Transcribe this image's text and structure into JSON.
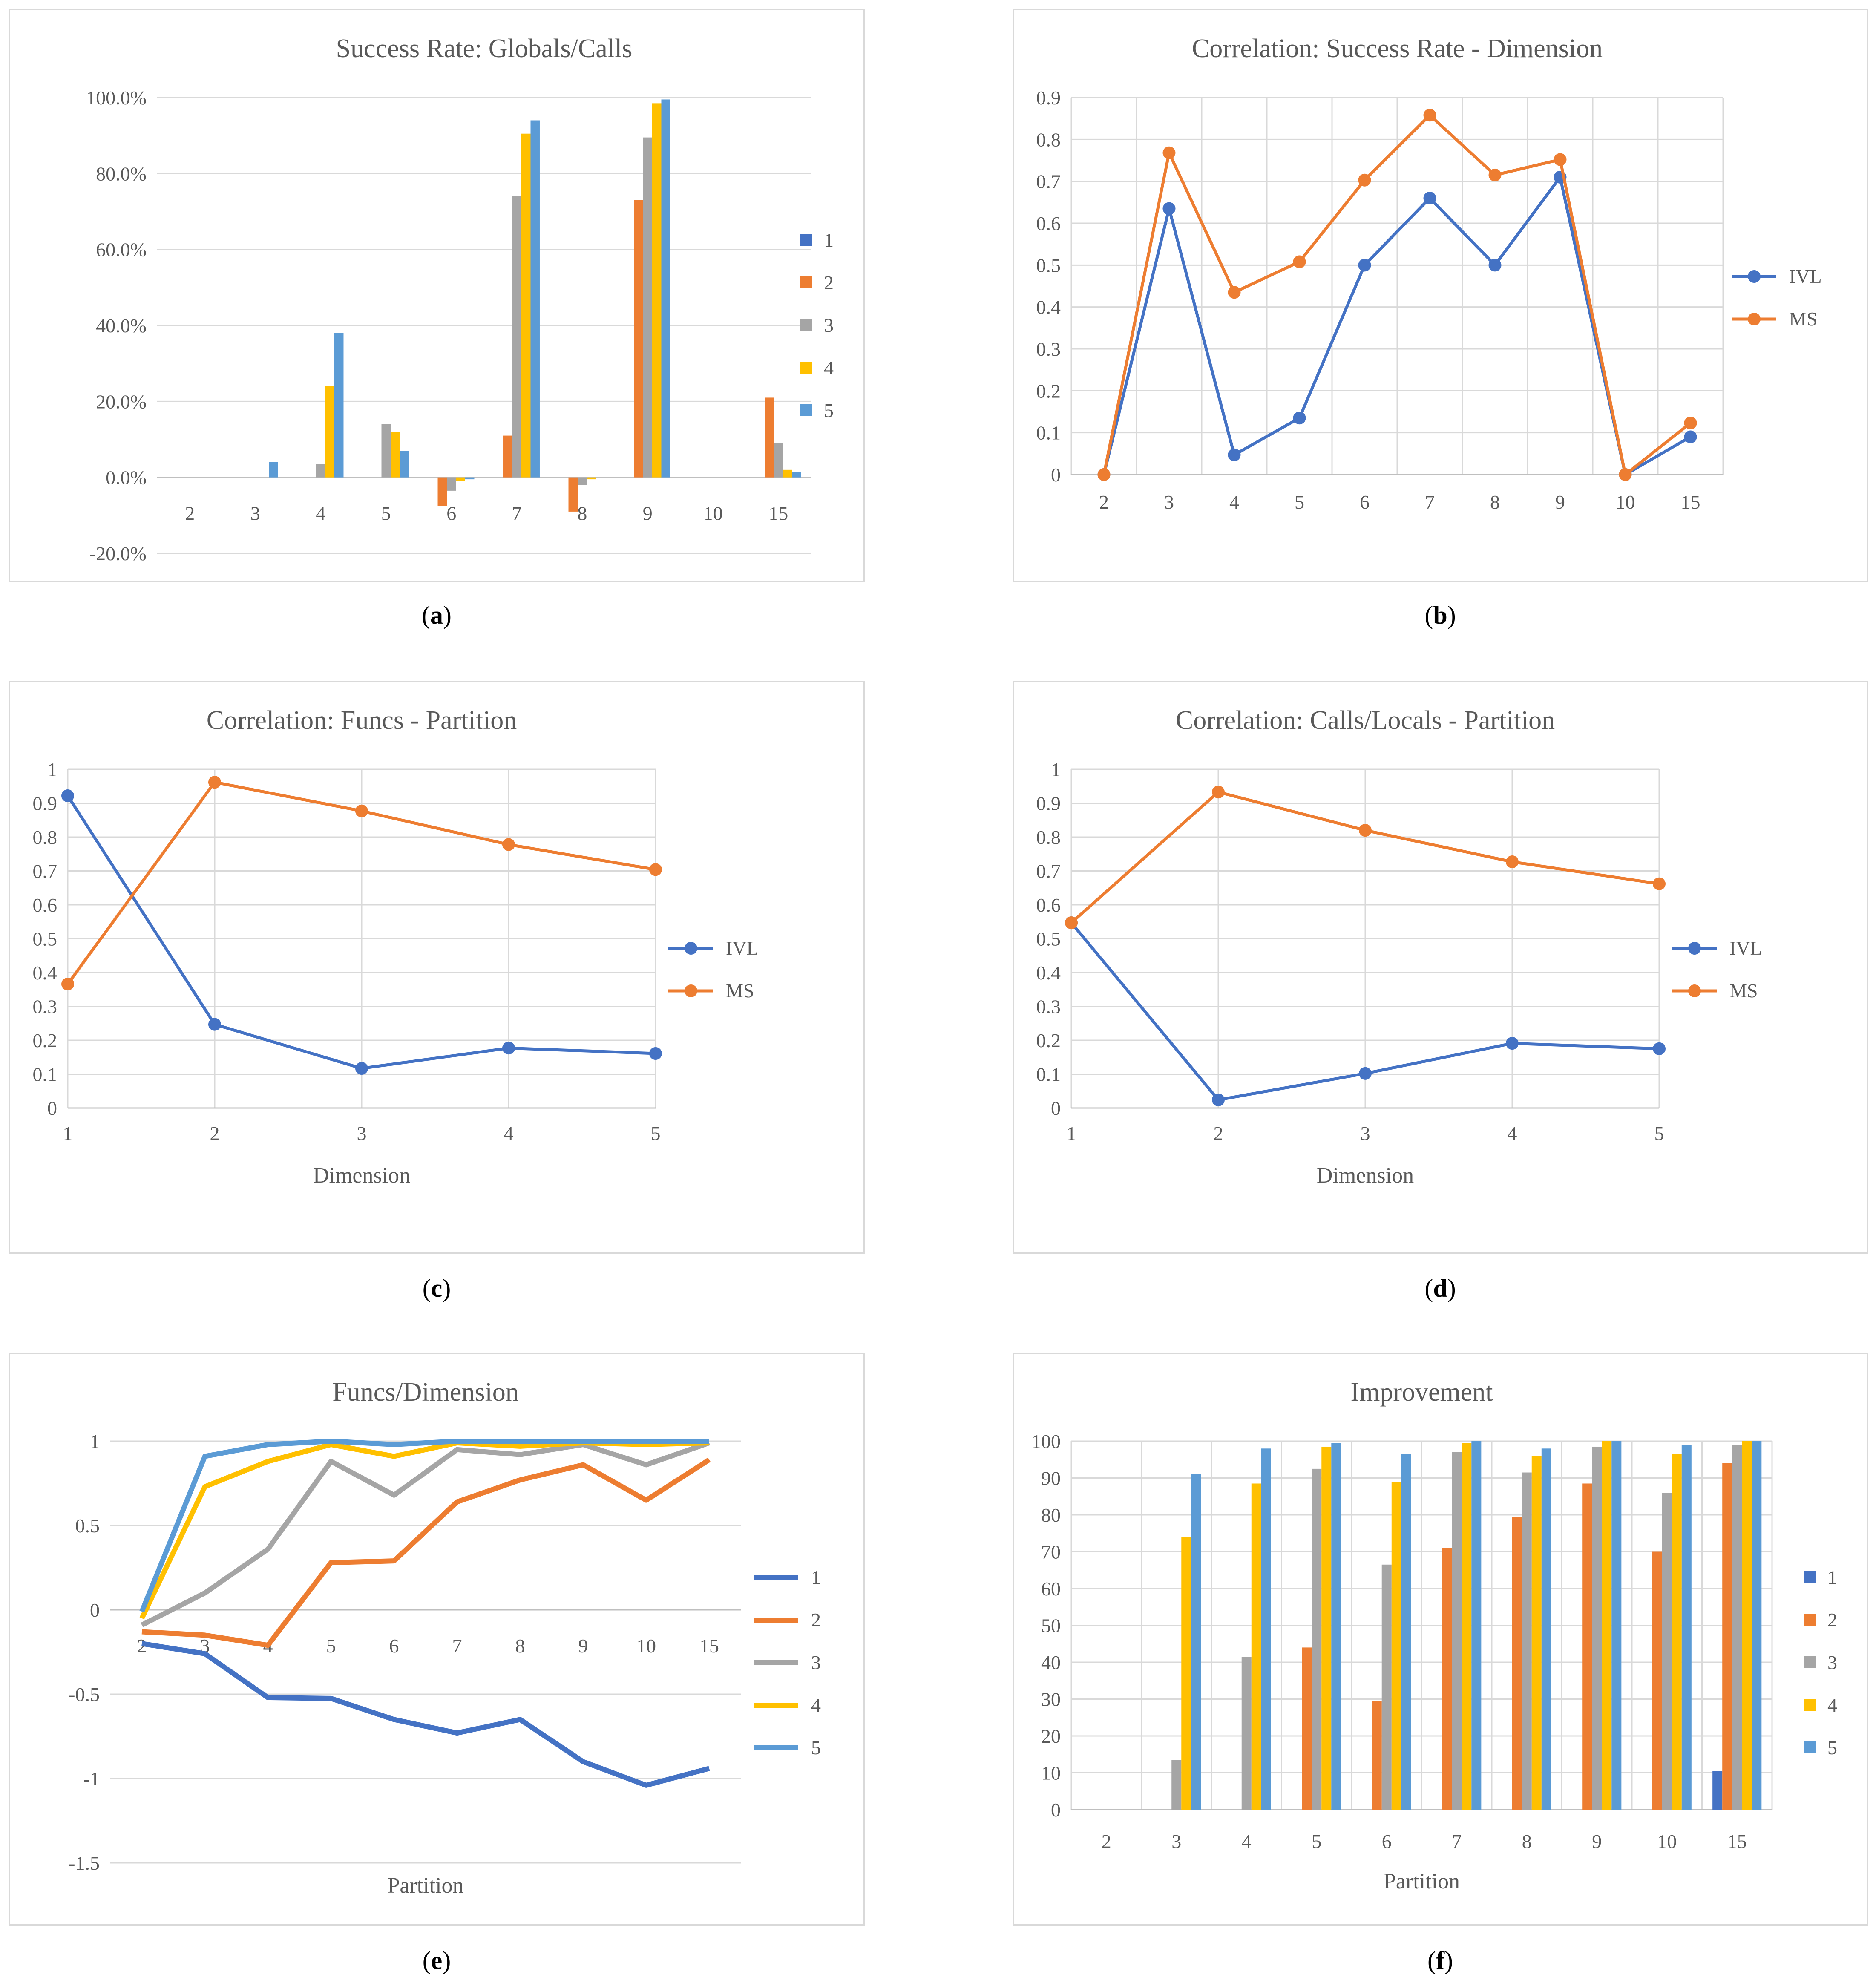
{
  "chart_data": [
    {
      "id": "a",
      "type": "bar",
      "caption": "a",
      "title": "Success Rate: Globals/Calls",
      "categories": [
        "2",
        "3",
        "4",
        "5",
        "6",
        "7",
        "8",
        "9",
        "10",
        "15"
      ],
      "ylim": [
        -20,
        100
      ],
      "yticks": [
        "-20.0%",
        "0.0%",
        "20.0%",
        "40.0%",
        "60.0%",
        "80.0%",
        "100.0%"
      ],
      "ytick_values": [
        -20,
        0,
        20,
        40,
        60,
        80,
        100
      ],
      "grid": true,
      "xlabel": "",
      "ylabel": "",
      "legend": "right",
      "series": [
        {
          "name": "1",
          "color": "#4472c4",
          "values": [
            0,
            0,
            0,
            0,
            0,
            0,
            0,
            0,
            0,
            0
          ]
        },
        {
          "name": "2",
          "color": "#ed7d31",
          "values": [
            0,
            0,
            0,
            0,
            -7.5,
            11,
            -9,
            73,
            0,
            21
          ]
        },
        {
          "name": "3",
          "color": "#a5a5a5",
          "values": [
            0,
            0,
            3.5,
            14,
            -3.5,
            74,
            -2,
            89.5,
            0,
            9
          ]
        },
        {
          "name": "4",
          "color": "#ffc000",
          "values": [
            0,
            0,
            24,
            12,
            -1,
            90.5,
            -0.5,
            98.5,
            0,
            2
          ]
        },
        {
          "name": "5",
          "color": "#5b9bd5",
          "values": [
            0,
            4,
            38,
            7,
            -0.5,
            94,
            0,
            99.5,
            0,
            1.5
          ]
        }
      ]
    },
    {
      "id": "b",
      "type": "line",
      "caption": "b",
      "title": "Correlation: Success Rate - Dimension",
      "categories": [
        "2",
        "3",
        "4",
        "5",
        "6",
        "7",
        "8",
        "9",
        "10",
        "15"
      ],
      "ylim": [
        0,
        0.9
      ],
      "yticks": [
        "0",
        "0.1",
        "0.2",
        "0.3",
        "0.4",
        "0.5",
        "0.6",
        "0.7",
        "0.8",
        "0.9"
      ],
      "ytick_values": [
        0,
        0.1,
        0.2,
        0.3,
        0.4,
        0.5,
        0.6,
        0.7,
        0.8,
        0.9
      ],
      "grid": true,
      "grid_x": true,
      "xlabel": "",
      "legend": "right",
      "series": [
        {
          "name": "IVL",
          "color": "#4472c4",
          "values": [
            0,
            0.635,
            0.047,
            0.135,
            0.5,
            0.66,
            0.5,
            0.71,
            0,
            0.09
          ]
        },
        {
          "name": "MS",
          "color": "#ed7d31",
          "values": [
            0,
            0.768,
            0.435,
            0.508,
            0.703,
            0.858,
            0.715,
            0.752,
            0,
            0.123
          ]
        }
      ]
    },
    {
      "id": "c",
      "type": "line",
      "caption": "c",
      "title": "Correlation: Funcs - Partition",
      "categories": [
        "1",
        "2",
        "3",
        "4",
        "5"
      ],
      "ylim": [
        0,
        1
      ],
      "yticks": [
        "0",
        "0.1",
        "0.2",
        "0.3",
        "0.4",
        "0.5",
        "0.6",
        "0.7",
        "0.8",
        "0.9",
        "1"
      ],
      "ytick_values": [
        0,
        0.1,
        0.2,
        0.3,
        0.4,
        0.5,
        0.6,
        0.7,
        0.8,
        0.9,
        1
      ],
      "grid": true,
      "grid_x": true,
      "xlabel": "Dimension",
      "legend": "right",
      "series": [
        {
          "name": "IVL",
          "color": "#4472c4",
          "values": [
            0.922,
            0.247,
            0.117,
            0.177,
            0.161
          ]
        },
        {
          "name": "MS",
          "color": "#ed7d31",
          "values": [
            0.366,
            0.962,
            0.877,
            0.778,
            0.704
          ]
        }
      ]
    },
    {
      "id": "d",
      "type": "line",
      "caption": "d",
      "title": "Correlation: Calls/Locals - Partition",
      "categories": [
        "1",
        "2",
        "3",
        "4",
        "5"
      ],
      "ylim": [
        0,
        1
      ],
      "yticks": [
        "0",
        "0.1",
        "0.2",
        "0.3",
        "0.4",
        "0.5",
        "0.6",
        "0.7",
        "0.8",
        "0.9",
        "1"
      ],
      "ytick_values": [
        0,
        0.1,
        0.2,
        0.3,
        0.4,
        0.5,
        0.6,
        0.7,
        0.8,
        0.9,
        1
      ],
      "grid": true,
      "grid_x": true,
      "xlabel": "Dimension",
      "legend": "right",
      "series": [
        {
          "name": "IVL",
          "color": "#4472c4",
          "values": [
            0.547,
            0.024,
            0.102,
            0.191,
            0.175
          ]
        },
        {
          "name": "MS",
          "color": "#ed7d31",
          "values": [
            0.547,
            0.933,
            0.82,
            0.727,
            0.662
          ]
        }
      ]
    },
    {
      "id": "e",
      "type": "line",
      "caption": "e",
      "title": "Funcs/Dimension",
      "categories": [
        "2",
        "3",
        "4",
        "5",
        "6",
        "7",
        "8",
        "9",
        "10",
        "15"
      ],
      "ylim": [
        -1.5,
        1
      ],
      "yticks": [
        "-1.5",
        "-1",
        "-0.5",
        "0",
        "0.5",
        "1"
      ],
      "ytick_values": [
        -1.5,
        -1,
        -0.5,
        0,
        0.5,
        1
      ],
      "grid": true,
      "xlabel": "Partition",
      "legend": "right",
      "series": [
        {
          "name": "1",
          "color": "#4472c4",
          "values": [
            -0.2,
            -0.26,
            -0.52,
            -0.525,
            -0.65,
            -0.73,
            -0.65,
            -0.9,
            -1.04,
            -0.94
          ]
        },
        {
          "name": "2",
          "color": "#ed7d31",
          "values": [
            -0.13,
            -0.15,
            -0.21,
            0.28,
            0.29,
            0.64,
            0.77,
            0.86,
            0.65,
            0.89
          ]
        },
        {
          "name": "3",
          "color": "#a5a5a5",
          "values": [
            -0.09,
            0.1,
            0.36,
            0.88,
            0.68,
            0.95,
            0.92,
            0.98,
            0.86,
            0.99
          ]
        },
        {
          "name": "4",
          "color": "#ffc000",
          "values": [
            -0.05,
            0.73,
            0.88,
            0.98,
            0.91,
            0.99,
            0.97,
            0.99,
            0.98,
            0.99
          ]
        },
        {
          "name": "5",
          "color": "#5b9bd5",
          "values": [
            -0.01,
            0.91,
            0.98,
            1.0,
            0.98,
            1.0,
            1.0,
            1.0,
            1.0,
            1.0
          ]
        }
      ]
    },
    {
      "id": "f",
      "type": "bar",
      "caption": "f",
      "title": "Improvement",
      "categories": [
        "2",
        "3",
        "4",
        "5",
        "6",
        "7",
        "8",
        "9",
        "10",
        "15"
      ],
      "ylim": [
        0,
        100
      ],
      "yticks": [
        "0",
        "10",
        "20",
        "30",
        "40",
        "50",
        "60",
        "70",
        "80",
        "90",
        "100"
      ],
      "ytick_values": [
        0,
        10,
        20,
        30,
        40,
        50,
        60,
        70,
        80,
        90,
        100
      ],
      "grid": true,
      "grid_x": true,
      "xlabel": "Partition",
      "legend": "right",
      "series": [
        {
          "name": "1",
          "color": "#4472c4",
          "values": [
            0,
            0,
            0,
            0,
            0,
            0,
            0,
            0,
            0,
            10.5
          ]
        },
        {
          "name": "2",
          "color": "#ed7d31",
          "values": [
            0,
            0,
            0,
            44,
            29.5,
            71,
            79.5,
            88.5,
            70,
            94
          ]
        },
        {
          "name": "3",
          "color": "#a5a5a5",
          "values": [
            0,
            13.5,
            41.5,
            92.5,
            66.5,
            97,
            91.5,
            98.5,
            86,
            99
          ]
        },
        {
          "name": "4",
          "color": "#ffc000",
          "values": [
            0,
            74,
            88.5,
            98.5,
            89,
            99.5,
            96,
            100,
            96.5,
            100
          ]
        },
        {
          "name": "5",
          "color": "#5b9bd5",
          "values": [
            0,
            91,
            98,
            99.5,
            96.5,
            100,
            98,
            100,
            99,
            100
          ]
        }
      ]
    }
  ]
}
